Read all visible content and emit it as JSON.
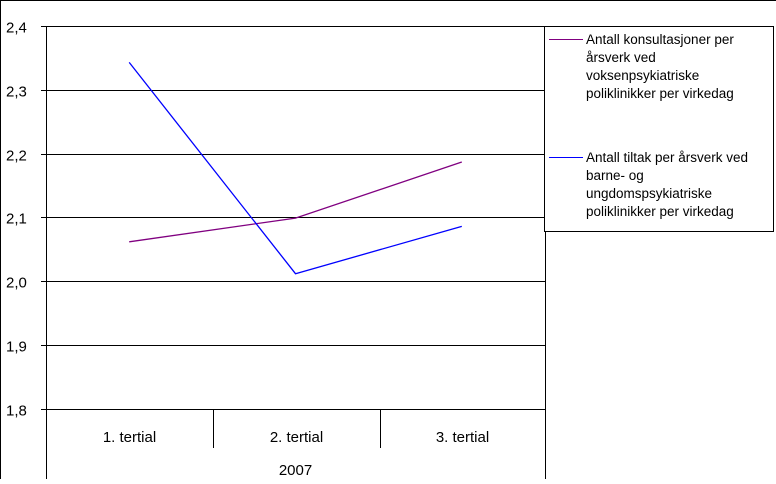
{
  "chart_data": {
    "type": "line",
    "categories": [
      "1. tertial",
      "2. tertial",
      "3. tertial"
    ],
    "group_label": "2007",
    "series": [
      {
        "name": "Antall konsultasjoner per årsverk ved voksenpsykiatriske poliklinikker per virkedag",
        "color": "#800080",
        "values": [
          2.062,
          2.099,
          2.187
        ]
      },
      {
        "name": "Antall tiltak per årsverk ved barne- og ungdomspsykiatriske poliklinikker per virkedag",
        "color": "#0000FF",
        "values": [
          2.343,
          2.012,
          2.086
        ]
      }
    ],
    "ylim": [
      1.8,
      2.4
    ],
    "yticks": [
      "1,8",
      "1,9",
      "2,0",
      "2,1",
      "2,2",
      "2,3",
      "2,4"
    ],
    "grid": true,
    "legend_position": "right"
  }
}
